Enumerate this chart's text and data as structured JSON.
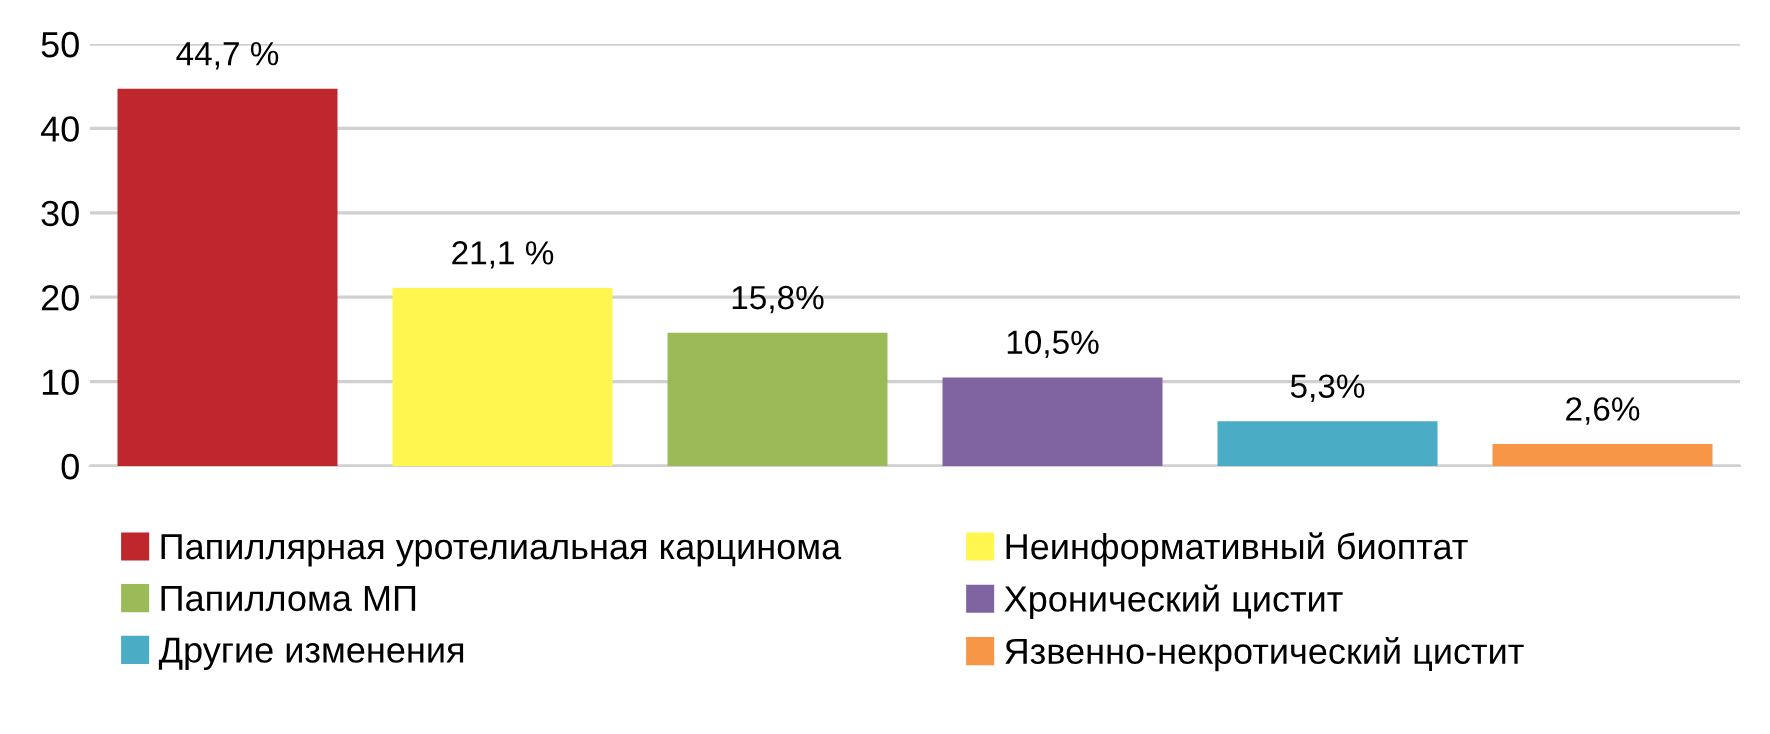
{
  "chart_data": {
    "type": "bar",
    "categories": [
      null,
      null,
      null,
      null,
      null,
      null
    ],
    "series": [
      {
        "name": "Папиллярная уротелиальная карцинома",
        "color": "#c0272d",
        "values": [
          44.7,
          null,
          null,
          null,
          null,
          null
        ],
        "value_labels": [
          "44,7 %",
          null,
          null,
          null,
          null,
          null
        ]
      },
      {
        "name": "Неинформативный биоптат",
        "color": "#fff64f",
        "values": [
          null,
          21.1,
          null,
          null,
          null,
          null
        ],
        "value_labels": [
          null,
          "21,1 %",
          null,
          null,
          null,
          null
        ]
      },
      {
        "name": "Папиллома МП",
        "color": "#9bbb59",
        "values": [
          null,
          null,
          15.8,
          null,
          null,
          null
        ],
        "value_labels": [
          null,
          null,
          "15,8%",
          null,
          null,
          null
        ]
      },
      {
        "name": "Хронический цистит",
        "color": "#8064a2",
        "values": [
          null,
          null,
          null,
          10.5,
          null,
          null
        ],
        "value_labels": [
          null,
          null,
          null,
          "10,5%",
          null,
          null
        ]
      },
      {
        "name": "Другие изменения",
        "color": "#4bacc6",
        "values": [
          null,
          null,
          null,
          null,
          5.3,
          null
        ],
        "value_labels": [
          null,
          null,
          null,
          null,
          "5,3%",
          null
        ]
      },
      {
        "name": "Язвенно-некротический цистит",
        "color": "#f79646",
        "values": [
          null,
          null,
          null,
          null,
          null,
          2.6
        ],
        "value_labels": [
          null,
          null,
          null,
          null,
          null,
          "2,6%"
        ]
      }
    ],
    "ylim": [
      0,
      50
    ],
    "yticks": [
      0,
      10,
      20,
      30,
      40,
      50
    ],
    "grid": "y",
    "legend": "bottom"
  }
}
